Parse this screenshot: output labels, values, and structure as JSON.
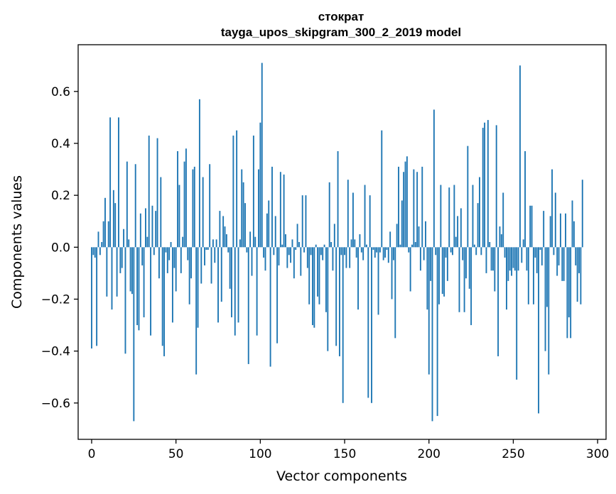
{
  "chart_data": {
    "type": "bar",
    "title": "стократ",
    "subtitle": "tayga_upos_skipgram_300_2_2019 model",
    "xlabel": "Vector components",
    "ylabel": "Components values",
    "xlim": [
      -8,
      305
    ],
    "ylim": [
      -0.74,
      0.78
    ],
    "xticks": [
      0,
      50,
      100,
      150,
      200,
      250,
      300
    ],
    "xtick_labels": [
      "0",
      "50",
      "100",
      "150",
      "200",
      "250",
      "300"
    ],
    "yticks": [
      -0.6,
      -0.4,
      -0.2,
      0.0,
      0.2,
      0.4,
      0.6
    ],
    "ytick_labels": [
      "−0.6",
      "−0.4",
      "−0.2",
      "0.0",
      "0.2",
      "0.4",
      "0.6"
    ],
    "bar_color": "#1f77b4",
    "values": [
      -0.39,
      -0.03,
      -0.04,
      -0.38,
      0.06,
      -0.03,
      0.02,
      0.1,
      0.19,
      -0.19,
      0.1,
      0.5,
      -0.24,
      0.22,
      0.17,
      -0.19,
      0.5,
      -0.1,
      -0.08,
      0.07,
      -0.41,
      0.33,
      0.03,
      -0.17,
      -0.18,
      -0.67,
      0.32,
      -0.3,
      -0.32,
      0.13,
      -0.07,
      -0.27,
      0.15,
      0.04,
      0.43,
      -0.34,
      0.16,
      -0.03,
      0.14,
      0.42,
      -0.12,
      0.27,
      -0.38,
      -0.42,
      -0.02,
      -0.1,
      -0.05,
      0.02,
      -0.29,
      -0.08,
      -0.17,
      0.37,
      0.24,
      -0.1,
      0.04,
      0.33,
      0.38,
      -0.05,
      -0.22,
      -0.12,
      0.3,
      0.31,
      -0.49,
      -0.31,
      0.57,
      -0.14,
      0.27,
      -0.07,
      -0.01,
      -0.01,
      0.32,
      -0.14,
      0.03,
      -0.06,
      0.03,
      -0.29,
      0.14,
      -0.21,
      0.12,
      0.08,
      0.05,
      -0.02,
      -0.16,
      -0.27,
      0.43,
      -0.34,
      0.45,
      -0.29,
      0.03,
      0.3,
      0.25,
      0.17,
      -0.02,
      -0.45,
      0.06,
      -0.11,
      0.43,
      0.04,
      -0.34,
      0.3,
      0.48,
      0.71,
      -0.04,
      -0.09,
      0.13,
      0.18,
      -0.46,
      0.31,
      -0.03,
      0.12,
      -0.37,
      -0.07,
      0.29,
      0.01,
      0.28,
      0.05,
      -0.08,
      -0.03,
      -0.06,
      0.03,
      -0.12,
      -0.01,
      0.09,
      0.02,
      -0.11,
      0.2,
      -0.02,
      0.2,
      -0.08,
      -0.22,
      -0.03,
      -0.3,
      -0.31,
      0.01,
      -0.19,
      -0.22,
      -0.03,
      -0.05,
      0.01,
      -0.25,
      -0.4,
      0.25,
      0.02,
      -0.09,
      0.09,
      -0.38,
      0.37,
      -0.42,
      -0.03,
      -0.6,
      -0.03,
      -0.08,
      0.26,
      -0.08,
      0.03,
      0.21,
      0.03,
      -0.04,
      -0.24,
      0.05,
      -0.02,
      -0.05,
      0.24,
      0.01,
      -0.58,
      0.2,
      -0.6,
      -0.01,
      -0.04,
      -0.02,
      -0.26,
      -0.02,
      0.45,
      -0.05,
      -0.04,
      -0.01,
      -0.06,
      0.06,
      -0.2,
      -0.05,
      -0.35,
      0.09,
      0.31,
      0.01,
      0.18,
      0.29,
      0.33,
      0.35,
      -0.02,
      -0.17,
      0.01,
      0.3,
      0.02,
      0.29,
      0.08,
      -0.09,
      0.31,
      -0.05,
      0.1,
      -0.24,
      -0.49,
      -0.13,
      -0.67,
      0.53,
      -0.03,
      -0.65,
      -0.22,
      0.24,
      -0.18,
      -0.19,
      -0.04,
      -0.13,
      0.23,
      -0.02,
      -0.03,
      0.24,
      0.04,
      0.12,
      -0.25,
      0.15,
      -0.05,
      -0.25,
      -0.12,
      0.39,
      -0.16,
      -0.3,
      0.24,
      0.01,
      -0.03,
      0.17,
      0.27,
      -0.03,
      0.46,
      0.48,
      -0.1,
      0.49,
      0.02,
      -0.09,
      -0.09,
      -0.17,
      0.47,
      -0.42,
      0.08,
      0.05,
      0.21,
      -0.04,
      -0.24,
      -0.13,
      -0.09,
      -0.11,
      -0.08,
      -0.09,
      -0.51,
      -0.09,
      0.7,
      -0.06,
      0.03,
      0.37,
      -0.09,
      -0.22,
      0.16,
      0.16,
      -0.22,
      -0.04,
      -0.1,
      -0.64,
      -0.01,
      -0.07,
      0.14,
      -0.4,
      -0.23,
      -0.49,
      0.12,
      0.3,
      -0.03,
      0.21,
      -0.11,
      -0.07,
      0.13,
      -0.13,
      -0.13,
      0.13,
      -0.35,
      -0.27,
      -0.35,
      0.18,
      0.1,
      -0.07,
      -0.21,
      -0.1,
      -0.22,
      0.26
    ]
  }
}
